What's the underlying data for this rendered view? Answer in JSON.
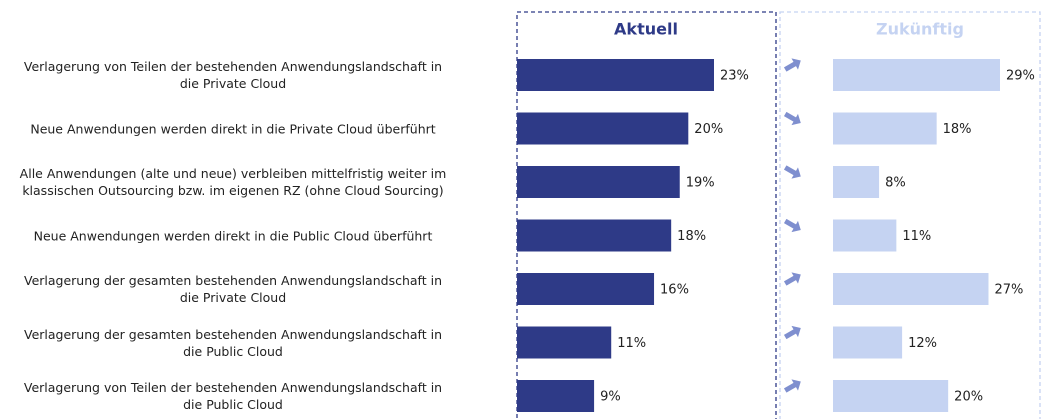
{
  "chart_data": {
    "type": "bar",
    "categories": [
      "Verlagerung von Teilen der bestehenden Anwendungslandschaft in\ndie Private Cloud",
      "Neue Anwendungen werden direkt in die Private Cloud überführt",
      "Alle Anwendungen (alte und neue) verbleiben mittelfristig weiter im\nklassischen Outsourcing bzw. im eigenen RZ (ohne Cloud Sourcing)",
      "Neue Anwendungen werden direkt in die Public Cloud überführt",
      "Verlagerung der gesamten bestehenden Anwendungslandschaft in\ndie Private Cloud",
      "Verlagerung der gesamten bestehenden Anwendungslandschaft in\ndie Public Cloud",
      "Verlagerung von Teilen der bestehenden Anwendungslandschaft in\ndie Public Cloud"
    ],
    "series": [
      {
        "name": "Aktuell",
        "color": "#2e3a87",
        "values": [
          23,
          20,
          19,
          18,
          16,
          11,
          9
        ],
        "value_labels": [
          "23%",
          "20%",
          "19%",
          "18%",
          "16%",
          "11%",
          "9%"
        ]
      },
      {
        "name": "Zukünftig",
        "color": "#c5d3f2",
        "values": [
          29,
          18,
          8,
          11,
          27,
          12,
          20
        ],
        "value_labels": [
          "29%",
          "18%",
          "8%",
          "11%",
          "27%",
          "12%",
          "20%"
        ]
      }
    ]
  }
}
